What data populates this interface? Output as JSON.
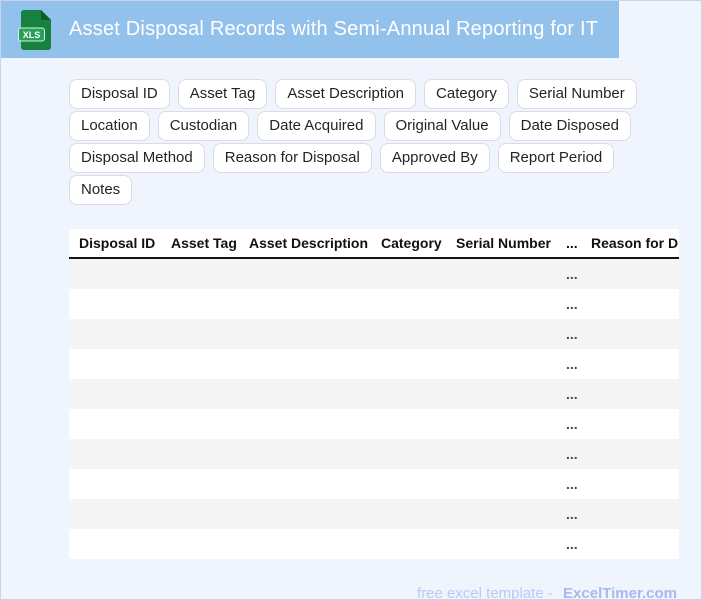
{
  "header": {
    "title": "Asset Disposal Records with Semi-Annual Reporting for IT",
    "file_icon_label": "XLS"
  },
  "field_chips": [
    "Disposal ID",
    "Asset Tag",
    "Asset Description",
    "Category",
    "Serial Number",
    "Location",
    "Custodian",
    "Date Acquired",
    "Original Value",
    "Date Disposed",
    "Disposal Method",
    "Reason for Disposal",
    "Approved By",
    "Report Period",
    "Notes"
  ],
  "table": {
    "columns": [
      "Disposal ID",
      "Asset Tag",
      "Asset Description",
      "Category",
      "Serial Number",
      "...",
      "Reason for Disposal"
    ],
    "rows": [
      "...",
      "...",
      "...",
      "...",
      "...",
      "...",
      "...",
      "...",
      "...",
      "..."
    ]
  },
  "footer": {
    "text": "free excel template -",
    "brand": "ExcelTimer.com"
  },
  "colors": {
    "header_bg": "#92c1ec",
    "page_bg": "#f0f5fd",
    "stripe": "#f5f5f5",
    "icon_green": "#17813f",
    "icon_fold_green": "#0c5c2c",
    "badge_green": "#27a05a",
    "footer_text": "#bcc7f4",
    "footer_brand": "#a9b8ef"
  }
}
